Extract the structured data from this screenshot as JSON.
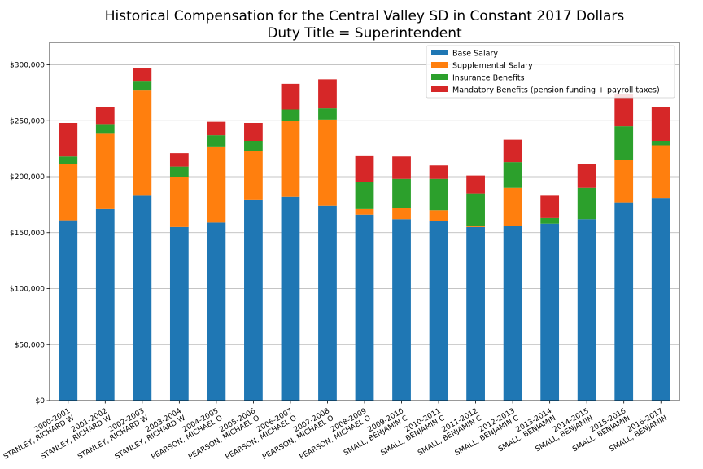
{
  "chart_data": {
    "type": "bar",
    "stacked": true,
    "title": "Historical Compensation for the Central Valley SD in Constant 2017 Dollars",
    "subtitle": "Duty Title = Superintendent",
    "ylim": [
      0,
      320000
    ],
    "yticks": [
      0,
      50000,
      100000,
      150000,
      200000,
      250000,
      300000
    ],
    "ytick_labels": [
      "$0",
      "$50,000",
      "$100,000",
      "$150,000",
      "$200,000",
      "$250,000",
      "$300,000"
    ],
    "grid": "horizontal",
    "legend_position": "top-right",
    "categories": [
      {
        "year": "2000-2001",
        "name": "STANLEY, RICHARD W"
      },
      {
        "year": "2001-2002",
        "name": "STANLEY, RICHARD W"
      },
      {
        "year": "2002-2003",
        "name": "STANLEY, RICHARD W"
      },
      {
        "year": "2003-2004",
        "name": "STANLEY, RICHARD W"
      },
      {
        "year": "2004-2005",
        "name": "PEARSON, MICHAEL O"
      },
      {
        "year": "2005-2006",
        "name": "PEARSON, MICHAEL O"
      },
      {
        "year": "2006-2007",
        "name": "PEARSON, MICHAEL O"
      },
      {
        "year": "2007-2008",
        "name": "PEARSON, MICHAEL O"
      },
      {
        "year": "2008-2009",
        "name": "PEARSON, MICHAEL O"
      },
      {
        "year": "2009-2010",
        "name": "SMALL, BENJAMIN C"
      },
      {
        "year": "2010-2011",
        "name": "SMALL, BENJAMIN C"
      },
      {
        "year": "2011-2012",
        "name": "SMALL, BENJAMIN C"
      },
      {
        "year": "2012-2013",
        "name": "SMALL, BENJAMIN C"
      },
      {
        "year": "2013-2014",
        "name": "SMALL, BENJAMIN"
      },
      {
        "year": "2014-2015",
        "name": "SMALL, BENJAMIN"
      },
      {
        "year": "2015-2016",
        "name": "SMALL, BENJAMIN"
      },
      {
        "year": "2016-2017",
        "name": "SMALL, BENJAMIN"
      }
    ],
    "series": [
      {
        "name": "Base Salary",
        "color": "#1f77b4",
        "values": [
          161000,
          171000,
          183000,
          155000,
          159000,
          179000,
          182000,
          174000,
          166000,
          162000,
          160000,
          155000,
          156000,
          158000,
          162000,
          177000,
          181000
        ]
      },
      {
        "name": "Supplemental Salary",
        "color": "#ff7f0e",
        "values": [
          50000,
          68000,
          94000,
          45000,
          68000,
          44000,
          68000,
          77000,
          5000,
          10000,
          10000,
          1000,
          34000,
          0,
          0,
          38000,
          47000
        ]
      },
      {
        "name": "Insurance Benefits",
        "color": "#2ca02c",
        "values": [
          7000,
          8000,
          8000,
          9000,
          10000,
          9000,
          10000,
          10000,
          24000,
          26000,
          28000,
          29000,
          23000,
          5000,
          28000,
          30000,
          4000
        ]
      },
      {
        "name": "Mandatory Benefits (pension funding + payroll taxes)",
        "color": "#d62728",
        "values": [
          30000,
          15000,
          12000,
          12000,
          12000,
          16000,
          23000,
          26000,
          24000,
          20000,
          12000,
          16000,
          20000,
          20000,
          21000,
          29000,
          30000
        ]
      }
    ]
  }
}
